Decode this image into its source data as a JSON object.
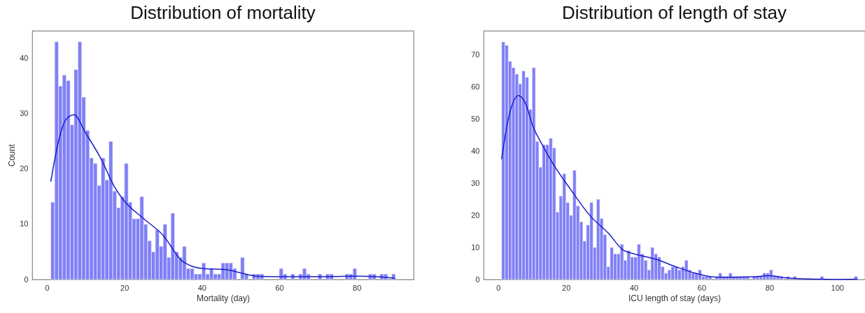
{
  "chart_data": [
    {
      "type": "histogram",
      "title": "Distribution of mortality",
      "xlabel": "Mortality (day)",
      "ylabel": "Count",
      "color": "#8080f6",
      "bins": [
        1,
        2,
        3,
        4,
        5,
        6,
        7,
        8,
        9,
        10,
        11,
        12,
        13,
        14,
        15,
        16,
        17,
        18,
        19,
        20,
        21,
        22,
        23,
        24,
        25,
        26,
        27,
        28,
        29,
        30,
        31,
        32,
        33,
        34,
        35,
        36,
        37,
        38,
        39,
        40,
        41,
        42,
        43,
        44,
        45,
        46,
        47,
        48,
        49,
        50,
        51,
        52,
        53,
        54,
        55,
        56,
        57,
        58,
        59,
        60,
        61,
        62,
        63,
        64,
        65,
        66,
        67,
        68,
        69,
        70,
        71,
        72,
        73,
        74,
        75,
        76,
        77,
        78,
        79,
        80,
        81,
        82,
        83,
        84,
        85,
        86,
        87,
        88,
        89,
        90
      ],
      "values": [
        14,
        43,
        35,
        37,
        36,
        28,
        38,
        43,
        33,
        27,
        22,
        21,
        17,
        22,
        18,
        25,
        16,
        13,
        15,
        21,
        14,
        11,
        11,
        15,
        10,
        7,
        5,
        9,
        6,
        10,
        4,
        12,
        5,
        4,
        6,
        2,
        2,
        1,
        1,
        3,
        1,
        2,
        1,
        1,
        3,
        3,
        3,
        2,
        0,
        4,
        1,
        0,
        1,
        1,
        1,
        0,
        0,
        0,
        0,
        2,
        1,
        0,
        1,
        0,
        1,
        2,
        1,
        0,
        0,
        1,
        0,
        1,
        1,
        0,
        0,
        0,
        1,
        1,
        2,
        0,
        0,
        0,
        1,
        1,
        0,
        1,
        1,
        0,
        1
      ],
      "series": [
        {
          "type": "line",
          "color": "#1c1cc8",
          "x": [
            1,
            3,
            5,
            7,
            10,
            14,
            17.5,
            20,
            25,
            30,
            35,
            40,
            46,
            50,
            54,
            58,
            62,
            70,
            80,
            85,
            90
          ],
          "values": [
            17.7,
            25,
            29,
            29.8,
            26.5,
            21.8,
            16.7,
            14.2,
            11,
            8,
            3.3,
            2,
            1.8,
            1.2,
            0.6,
            0.5,
            0.5,
            0.5,
            0.6,
            0.5,
            0.2
          ]
        }
      ],
      "xlim": [
        -3.8,
        94.7
      ],
      "ylim": [
        0,
        45
      ],
      "xticks": [
        0,
        20,
        40,
        60,
        80
      ],
      "yticks": [
        0,
        10,
        20,
        30,
        40
      ]
    },
    {
      "type": "histogram",
      "title": "Distribution of length of stay",
      "xlabel": "ICU length of stay (days)",
      "color": "#8080f6",
      "bins": [
        1,
        2,
        3,
        4,
        5,
        6,
        7,
        8,
        9,
        10,
        11,
        12,
        13,
        14,
        15,
        16,
        17,
        18,
        19,
        20,
        21,
        22,
        23,
        24,
        25,
        26,
        27,
        28,
        29,
        30,
        31,
        32,
        33,
        34,
        35,
        36,
        37,
        38,
        39,
        40,
        41,
        42,
        43,
        44,
        45,
        46,
        47,
        48,
        49,
        50,
        51,
        52,
        53,
        54,
        55,
        56,
        57,
        58,
        59,
        60,
        61,
        62,
        63,
        64,
        65,
        66,
        67,
        68,
        69,
        70,
        71,
        72,
        73,
        74,
        75,
        76,
        77,
        78,
        79,
        80,
        81,
        82,
        83,
        84,
        85,
        86,
        87,
        88,
        89,
        90,
        91,
        92,
        93,
        94,
        95,
        96,
        97,
        98,
        99,
        100,
        101,
        102,
        103,
        104,
        105,
        106
      ],
      "values": [
        74,
        73,
        68,
        66,
        64,
        61,
        65,
        63,
        53,
        66,
        43,
        35,
        42,
        42,
        44,
        41,
        21,
        26,
        33,
        24,
        20,
        34,
        23,
        18,
        12,
        17,
        24,
        10,
        25,
        19,
        14,
        4,
        10,
        8,
        8,
        11,
        6,
        9,
        7,
        7,
        11,
        8,
        6,
        3,
        10,
        8,
        7,
        4,
        2,
        3,
        4,
        4,
        3,
        4,
        6,
        3,
        2,
        2,
        3,
        1,
        1,
        1,
        0,
        1,
        2,
        1,
        1,
        2,
        1,
        1,
        1,
        1,
        1,
        0,
        1,
        1,
        1,
        2,
        2,
        3,
        1,
        1,
        1,
        0,
        1,
        0,
        1,
        0,
        0,
        0,
        0,
        0,
        0,
        0,
        1,
        0,
        0,
        0,
        0,
        0,
        0,
        0,
        0,
        0,
        1
      ],
      "series": [
        {
          "type": "line",
          "color": "#1c1cc8",
          "x": [
            1,
            3,
            6,
            8,
            10.3,
            13,
            15.8,
            21.4,
            27,
            32.6,
            36.8,
            40,
            46.5,
            52.8,
            58,
            62,
            66,
            70,
            75,
            80,
            85,
            90,
            95,
            100,
            106
          ],
          "values": [
            37.5,
            50,
            57.3,
            55,
            47.6,
            42,
            36.7,
            28,
            20,
            14.3,
            9.2,
            8,
            6.3,
            3.8,
            2,
            1,
            0.7,
            0.7,
            0.8,
            1.2,
            0.5,
            0.2,
            0.1,
            0,
            0.1
          ]
        }
      ],
      "xlim": [
        -4.3,
        108.2
      ],
      "ylim": [
        0,
        77.5
      ],
      "xticks": [
        0,
        20,
        40,
        60,
        80,
        100
      ],
      "yticks": [
        0,
        10,
        20,
        30,
        40,
        50,
        60,
        70
      ]
    }
  ]
}
